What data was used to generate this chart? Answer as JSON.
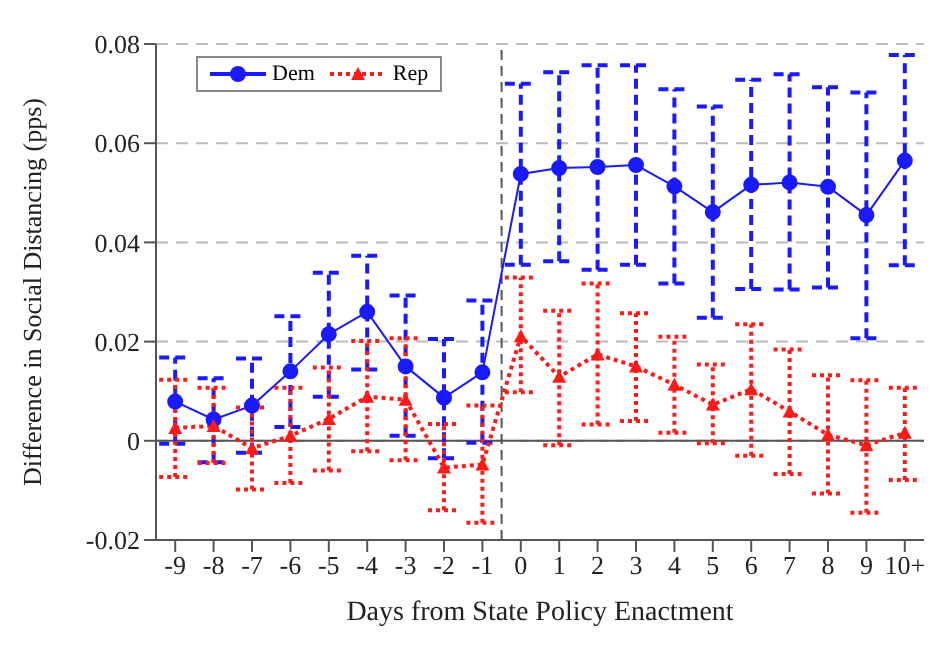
{
  "chart_data": {
    "type": "line",
    "xlabel": "Days from State Policy Enactment",
    "ylabel": "Difference in Social Distancing (pps)",
    "x": [
      -9,
      -8,
      -7,
      -6,
      -5,
      -4,
      -3,
      -2,
      -1,
      0,
      1,
      2,
      3,
      4,
      5,
      6,
      7,
      8,
      9,
      10
    ],
    "xlim": [
      -9.5,
      10.5
    ],
    "xticks": [
      -9,
      -8,
      -7,
      -6,
      -5,
      -4,
      -3,
      -2,
      -1,
      0,
      1,
      2,
      3,
      4,
      5,
      6,
      7,
      8,
      9,
      {
        "value": 10,
        "label": "10+"
      }
    ],
    "ylim": [
      -0.02,
      0.08
    ],
    "yticks": [
      -0.02,
      0,
      0.02,
      0.04,
      0.06,
      0.08
    ],
    "grid": "y",
    "legend": "top left",
    "series": [
      {
        "name": "Dem",
        "color": "#1a1aff",
        "marker": "circle",
        "line_style": "solid",
        "values": [
          0.0079,
          0.0043,
          0.0071,
          0.014,
          0.0215,
          0.026,
          0.015,
          0.0087,
          0.0138,
          0.0538,
          0.055,
          0.0552,
          0.0556,
          0.0513,
          0.0461,
          0.0516,
          0.0521,
          0.0512,
          0.0455,
          0.0565
        ],
        "errors": [
          [
            -0.0006,
            0.0168
          ],
          [
            -0.0043,
            0.0126
          ],
          [
            -0.0024,
            0.0166
          ],
          [
            0.0028,
            0.0251
          ],
          [
            0.0089,
            0.0339
          ],
          [
            0.0144,
            0.0373
          ],
          [
            0.001,
            0.0293
          ],
          [
            -0.0035,
            0.0205
          ],
          [
            -0.0004,
            0.0283
          ],
          [
            0.0355,
            0.072
          ],
          [
            0.0362,
            0.0743
          ],
          [
            0.0345,
            0.0757
          ],
          [
            0.0355,
            0.0757
          ],
          [
            0.0317,
            0.0709
          ],
          [
            0.0248,
            0.0674
          ],
          [
            0.0306,
            0.0728
          ],
          [
            0.0305,
            0.0739
          ],
          [
            0.0309,
            0.0713
          ],
          [
            0.0207,
            0.0702
          ],
          [
            0.0354,
            0.0778
          ]
        ]
      },
      {
        "name": "Rep",
        "color": "#ff1a1a",
        "marker": "triangle",
        "line_style": "dotted",
        "values": [
          0.0026,
          0.003,
          -0.0015,
          0.001,
          0.0044,
          0.0089,
          0.0083,
          -0.0054,
          -0.0048,
          0.0211,
          0.0129,
          0.0174,
          0.015,
          0.0113,
          0.0073,
          0.0104,
          0.0059,
          0.0012,
          -0.0009,
          0.0016
        ],
        "errors": [
          [
            -0.0073,
            0.0123
          ],
          [
            -0.0045,
            0.0107
          ],
          [
            -0.0098,
            0.0067
          ],
          [
            -0.0085,
            0.0107
          ],
          [
            -0.006,
            0.0148
          ],
          [
            -0.0021,
            0.0201
          ],
          [
            -0.0039,
            0.0207
          ],
          [
            -0.014,
            0.0034
          ],
          [
            -0.0165,
            0.0071
          ],
          [
            0.0098,
            0.0329
          ],
          [
            -0.0009,
            0.0262
          ],
          [
            0.0033,
            0.0317
          ],
          [
            0.004,
            0.0257
          ],
          [
            0.0016,
            0.021
          ],
          [
            -0.0005,
            0.0154
          ],
          [
            -0.003,
            0.0235
          ],
          [
            -0.0067,
            0.0184
          ],
          [
            -0.0106,
            0.0132
          ],
          [
            -0.0145,
            0.0122
          ],
          [
            -0.0079,
            0.0107
          ]
        ]
      }
    ],
    "ref_lines": [
      {
        "axis": "y",
        "value": 0,
        "color": "#555555",
        "line_style": "solid"
      },
      {
        "axis": "x",
        "value": -0.5,
        "color": "#555555",
        "line_style": "dashed"
      }
    ]
  }
}
